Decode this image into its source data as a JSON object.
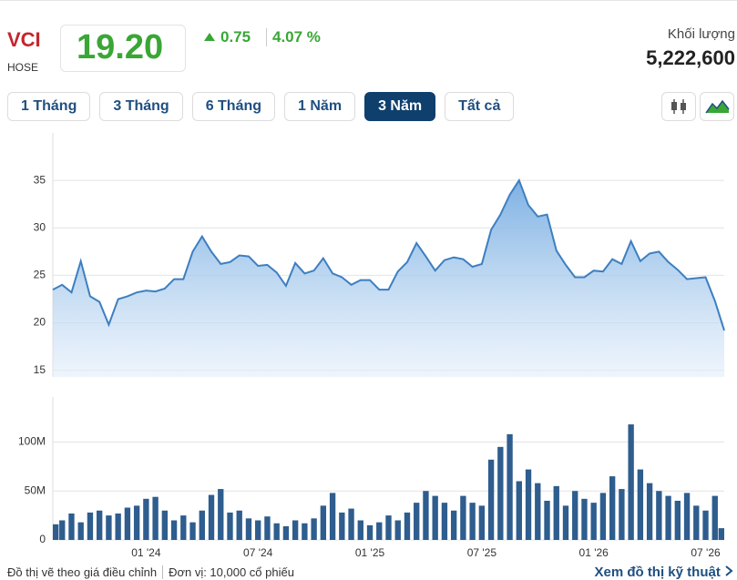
{
  "header": {
    "ticker": "VCI",
    "exchange": "HOSE",
    "price": "19.20",
    "change": "0.75",
    "change_percent": "4.07 %",
    "volume_label": "Khối lượng",
    "volume": "5,222,600"
  },
  "range_buttons": [
    "1 Tháng",
    "3 Tháng",
    "6 Tháng",
    "1 Năm",
    "3 Năm",
    "Tất cả"
  ],
  "active_range_index": 4,
  "chart_data": [
    {
      "type": "area",
      "color": "#3d7fc0",
      "grid": true,
      "ylim": [
        14.3,
        40
      ],
      "yticks": [
        15,
        20,
        25,
        30,
        35
      ],
      "values": [
        23.5,
        24,
        23.2,
        26.5,
        22.8,
        22.2,
        19.8,
        22.5,
        22.8,
        23.2,
        23.4,
        23.3,
        23.6,
        24.6,
        24.6,
        27.5,
        29.1,
        27.5,
        26.2,
        26.4,
        27.1,
        27,
        26,
        26.1,
        25.3,
        23.9,
        26.3,
        25.2,
        25.5,
        26.8,
        25.2,
        24.8,
        24,
        24.5,
        24.5,
        23.5,
        23.5,
        25.4,
        26.4,
        28.4,
        27,
        25.5,
        26.6,
        26.9,
        26.7,
        25.9,
        26.2,
        29.8,
        31.4,
        33.5,
        35,
        32.4,
        31.2,
        31.4,
        27.6,
        26.1,
        24.8,
        24.8,
        25.5,
        25.4,
        26.7,
        26.2,
        28.6,
        26.5,
        27.3,
        27.5,
        26.4,
        25.6,
        24.6,
        24.7,
        24.8,
        22.3,
        19.2
      ]
    },
    {
      "type": "bar",
      "color": "#2e5d8e",
      "grid": true,
      "ylim": [
        0,
        146
      ],
      "yticks": [
        0,
        {
          "value": 50,
          "label": "50M"
        },
        {
          "value": 100,
          "label": "100M"
        }
      ],
      "categories": [
        null,
        null,
        null,
        null,
        null,
        null,
        null,
        null,
        null,
        null,
        "01 '24",
        null,
        null,
        null,
        null,
        null,
        null,
        null,
        null,
        null,
        null,
        null,
        "07 '24",
        null,
        null,
        null,
        null,
        null,
        null,
        null,
        null,
        null,
        null,
        null,
        "01 '25",
        null,
        null,
        null,
        null,
        null,
        null,
        null,
        null,
        null,
        null,
        null,
        "07 '25",
        null,
        null,
        null,
        null,
        null,
        null,
        null,
        null,
        null,
        null,
        null,
        "01 '26",
        null,
        null,
        null,
        null,
        null,
        null,
        null,
        null,
        null,
        null,
        null,
        "07 '26",
        null,
        null
      ],
      "values": [
        16,
        20,
        27,
        18,
        28,
        30,
        25,
        27,
        33,
        35,
        42,
        44,
        30,
        20,
        25,
        18,
        30,
        46,
        52,
        28,
        30,
        22,
        20,
        24,
        17,
        14,
        20,
        17,
        22,
        35,
        48,
        28,
        32,
        20,
        15,
        18,
        25,
        20,
        28,
        38,
        50,
        45,
        38,
        30,
        45,
        38,
        35,
        82,
        95,
        108,
        60,
        72,
        58,
        40,
        55,
        35,
        50,
        42,
        38,
        48,
        65,
        52,
        118,
        72,
        58,
        50,
        45,
        40,
        48,
        35,
        30,
        45,
        12
      ]
    }
  ],
  "footer": {
    "note": "Đồ thị vẽ theo giá điều chỉnh",
    "unit": "Đơn vị: 10,000 cổ phiếu",
    "link": "Xem đồ thị kỹ thuật"
  }
}
